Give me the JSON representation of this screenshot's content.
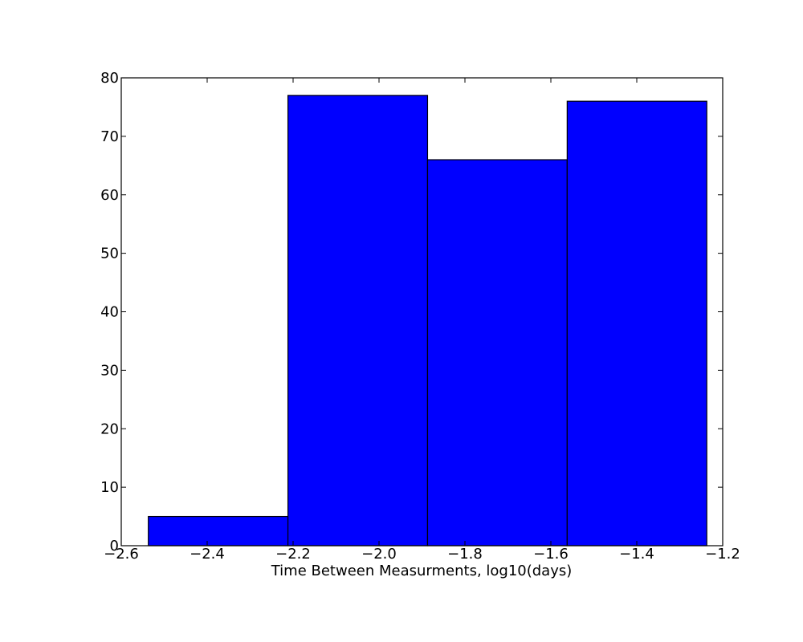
{
  "chart_data": {
    "type": "bar",
    "title": "",
    "xlabel": "Time Between Measurments, log10(days)",
    "ylabel": "",
    "xlim": [
      -2.6,
      -1.2
    ],
    "ylim": [
      0,
      80
    ],
    "x_ticks": [
      -2.6,
      -2.4,
      -2.2,
      -2.0,
      -1.8,
      -1.6,
      -1.4,
      -1.2
    ],
    "x_tick_labels": [
      "−2.6",
      "−2.4",
      "−2.2",
      "−2.0",
      "−1.8",
      "−1.6",
      "−1.4",
      "−1.2"
    ],
    "y_ticks": [
      0,
      10,
      20,
      30,
      40,
      50,
      60,
      70,
      80
    ],
    "y_tick_labels": [
      "0",
      "10",
      "20",
      "30",
      "40",
      "50",
      "60",
      "70",
      "80"
    ],
    "bins": [
      {
        "start": -2.537,
        "end": -2.212,
        "count": 5
      },
      {
        "start": -2.212,
        "end": -1.887,
        "count": 77
      },
      {
        "start": -1.887,
        "end": -1.562,
        "count": 66
      },
      {
        "start": -1.562,
        "end": -1.237,
        "count": 76
      }
    ],
    "bar_color": "#0000ff",
    "edge_color": "#000000",
    "grid": false,
    "legend": false
  }
}
